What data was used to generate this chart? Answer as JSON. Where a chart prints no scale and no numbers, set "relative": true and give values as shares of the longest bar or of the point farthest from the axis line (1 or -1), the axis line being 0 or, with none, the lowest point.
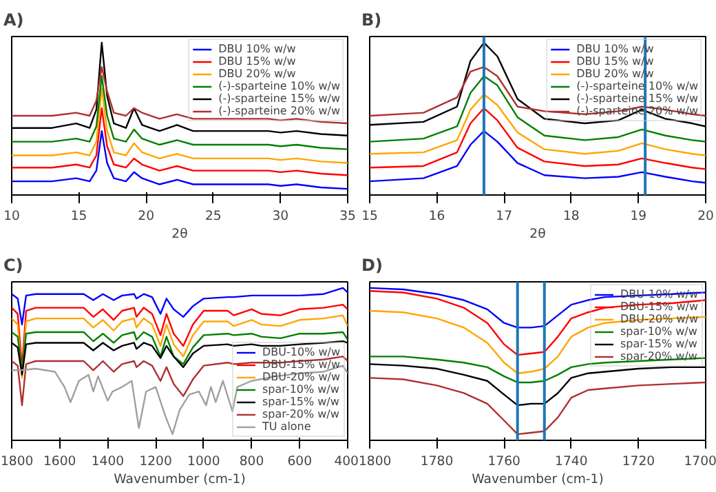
{
  "chart_data": [
    {
      "type": "line",
      "title": "A)",
      "xlabel": "2θ",
      "relative": true,
      "tick_labels": "x",
      "legend": "top right",
      "xlim": [
        10,
        35
      ],
      "xticks": [
        10,
        15,
        20,
        25,
        30,
        35
      ],
      "x": [
        10,
        13,
        14.8,
        15.8,
        16.3,
        16.7,
        17.1,
        17.6,
        18.5,
        19.1,
        19.7,
        21,
        22.3,
        23.5,
        26,
        29.1,
        30,
        31.2,
        33,
        35
      ],
      "series": [
        {
          "name": "DBU 10% w/w",
          "color": "#0000ff",
          "values": [
            0.09,
            0.09,
            0.11,
            0.09,
            0.16,
            0.42,
            0.21,
            0.11,
            0.09,
            0.15,
            0.11,
            0.07,
            0.1,
            0.07,
            0.07,
            0.07,
            0.06,
            0.07,
            0.05,
            0.04
          ]
        },
        {
          "name": "DBU 15% w/w",
          "color": "#ff0000",
          "values": [
            0.18,
            0.18,
            0.2,
            0.18,
            0.26,
            0.57,
            0.32,
            0.2,
            0.18,
            0.24,
            0.2,
            0.16,
            0.19,
            0.16,
            0.16,
            0.16,
            0.15,
            0.16,
            0.14,
            0.13
          ]
        },
        {
          "name": "DBU 20% w/w",
          "color": "#ffa500",
          "values": [
            0.26,
            0.26,
            0.28,
            0.26,
            0.35,
            0.7,
            0.42,
            0.28,
            0.26,
            0.34,
            0.28,
            0.24,
            0.27,
            0.24,
            0.24,
            0.24,
            0.23,
            0.24,
            0.22,
            0.21
          ]
        },
        {
          "name": "(-)-sparteine 10% w/w",
          "color": "#008000",
          "values": [
            0.35,
            0.35,
            0.37,
            0.35,
            0.45,
            0.78,
            0.52,
            0.37,
            0.35,
            0.43,
            0.37,
            0.33,
            0.36,
            0.33,
            0.33,
            0.33,
            0.32,
            0.33,
            0.31,
            0.3
          ]
        },
        {
          "name": "(-)-sparteine 15% w/w",
          "color": "#000000",
          "values": [
            0.44,
            0.44,
            0.47,
            0.44,
            0.56,
            1.0,
            0.65,
            0.47,
            0.44,
            0.57,
            0.46,
            0.42,
            0.46,
            0.42,
            0.42,
            0.42,
            0.41,
            0.42,
            0.4,
            0.39
          ]
        },
        {
          "name": "(-)-sparteine 20% w/w",
          "color": "#b03030",
          "values": [
            0.52,
            0.52,
            0.54,
            0.52,
            0.62,
            0.84,
            0.68,
            0.54,
            0.52,
            0.57,
            0.54,
            0.5,
            0.53,
            0.5,
            0.5,
            0.5,
            0.49,
            0.5,
            0.48,
            0.47
          ]
        }
      ]
    },
    {
      "type": "line",
      "title": "B)",
      "xlabel": "2θ",
      "relative": true,
      "tick_labels": "x",
      "legend": "top right",
      "xlim": [
        15,
        20
      ],
      "xticks": [
        15,
        16,
        17,
        18,
        19,
        20
      ],
      "ref_lines": [
        {
          "axis": "x",
          "value": 16.7,
          "color": "#1f77b4"
        },
        {
          "axis": "x",
          "value": 19.1,
          "color": "#1f77b4"
        }
      ],
      "x": [
        15,
        15.8,
        16.3,
        16.5,
        16.7,
        16.9,
        17.2,
        17.6,
        18.2,
        18.7,
        19.05,
        19.4,
        19.8,
        20
      ],
      "series": [
        {
          "name": "DBU 10% w/w",
          "color": "#0000ff",
          "values": [
            0.09,
            0.11,
            0.19,
            0.33,
            0.42,
            0.35,
            0.21,
            0.13,
            0.11,
            0.12,
            0.15,
            0.12,
            0.09,
            0.08
          ]
        },
        {
          "name": "DBU 15% w/w",
          "color": "#ff0000",
          "values": [
            0.18,
            0.19,
            0.28,
            0.47,
            0.57,
            0.49,
            0.31,
            0.22,
            0.19,
            0.2,
            0.24,
            0.21,
            0.18,
            0.17
          ]
        },
        {
          "name": "DBU 20% w/w",
          "color": "#ffa500",
          "values": [
            0.27,
            0.28,
            0.36,
            0.56,
            0.66,
            0.59,
            0.41,
            0.3,
            0.27,
            0.29,
            0.34,
            0.3,
            0.27,
            0.26
          ]
        },
        {
          "name": "(-)-sparteine 10% w/w",
          "color": "#008000",
          "values": [
            0.35,
            0.37,
            0.45,
            0.67,
            0.78,
            0.72,
            0.51,
            0.39,
            0.36,
            0.38,
            0.43,
            0.39,
            0.36,
            0.35
          ]
        },
        {
          "name": "(-)-sparteine 15% w/w",
          "color": "#000000",
          "values": [
            0.46,
            0.48,
            0.58,
            0.88,
            1.0,
            0.91,
            0.63,
            0.5,
            0.47,
            0.49,
            0.56,
            0.5,
            0.47,
            0.45
          ]
        },
        {
          "name": "(-)-sparteine 20% w/w",
          "color": "#b03030",
          "values": [
            0.52,
            0.54,
            0.64,
            0.81,
            0.84,
            0.78,
            0.58,
            0.55,
            0.53,
            0.55,
            0.58,
            0.56,
            0.53,
            0.52
          ]
        }
      ]
    },
    {
      "type": "line",
      "title": "C)",
      "xlabel": "Wavenumber (cm-1)",
      "relative": true,
      "tick_labels": "x",
      "legend": "bottom right",
      "xlim": [
        1800,
        400
      ],
      "xticks": [
        1800,
        1600,
        1400,
        1200,
        1000,
        800,
        600,
        400
      ],
      "x": [
        1800,
        1775,
        1757,
        1740,
        1700,
        1600,
        1500,
        1460,
        1420,
        1375,
        1340,
        1290,
        1280,
        1250,
        1215,
        1180,
        1155,
        1125,
        1085,
        1045,
        1000,
        900,
        875,
        800,
        760,
        680,
        600,
        500,
        420,
        400
      ],
      "series": [
        {
          "name": "DBU-10% w/w",
          "color": "#0000ff",
          "values": [
            0.96,
            0.93,
            0.76,
            0.95,
            0.96,
            0.96,
            0.96,
            0.92,
            0.96,
            0.92,
            0.95,
            0.96,
            0.93,
            0.96,
            0.94,
            0.83,
            0.93,
            0.86,
            0.81,
            0.88,
            0.93,
            0.94,
            0.94,
            0.95,
            0.95,
            0.95,
            0.95,
            0.96,
            1.0,
            0.97
          ]
        },
        {
          "name": "DBU-15% w/w",
          "color": "#ff0000",
          "values": [
            0.87,
            0.83,
            0.48,
            0.85,
            0.87,
            0.87,
            0.87,
            0.81,
            0.86,
            0.79,
            0.85,
            0.87,
            0.81,
            0.87,
            0.83,
            0.69,
            0.83,
            0.7,
            0.62,
            0.76,
            0.85,
            0.85,
            0.82,
            0.86,
            0.83,
            0.82,
            0.86,
            0.87,
            0.89,
            0.86
          ]
        },
        {
          "name": "DBU-20% w/w",
          "color": "#ffa500",
          "values": [
            0.8,
            0.76,
            0.41,
            0.78,
            0.8,
            0.8,
            0.8,
            0.74,
            0.79,
            0.72,
            0.78,
            0.8,
            0.74,
            0.8,
            0.76,
            0.62,
            0.76,
            0.63,
            0.55,
            0.69,
            0.78,
            0.78,
            0.75,
            0.79,
            0.76,
            0.75,
            0.79,
            0.8,
            0.82,
            0.75
          ]
        },
        {
          "name": "spar-10% w/w",
          "color": "#008000",
          "values": [
            0.71,
            0.68,
            0.45,
            0.7,
            0.71,
            0.71,
            0.71,
            0.65,
            0.7,
            0.64,
            0.69,
            0.71,
            0.66,
            0.71,
            0.68,
            0.55,
            0.68,
            0.55,
            0.5,
            0.61,
            0.69,
            0.7,
            0.69,
            0.7,
            0.68,
            0.67,
            0.7,
            0.7,
            0.71,
            0.66
          ]
        },
        {
          "name": "spar-15% w/w",
          "color": "#000000",
          "values": [
            0.64,
            0.61,
            0.43,
            0.63,
            0.64,
            0.64,
            0.64,
            0.59,
            0.64,
            0.59,
            0.62,
            0.64,
            0.6,
            0.64,
            0.62,
            0.54,
            0.62,
            0.55,
            0.48,
            0.57,
            0.62,
            0.63,
            0.62,
            0.63,
            0.62,
            0.62,
            0.63,
            0.64,
            0.65,
            0.64
          ]
        },
        {
          "name": "spar-20% w/w",
          "color": "#b03030",
          "values": [
            0.52,
            0.49,
            0.23,
            0.5,
            0.52,
            0.52,
            0.52,
            0.46,
            0.52,
            0.45,
            0.5,
            0.52,
            0.48,
            0.52,
            0.49,
            0.39,
            0.48,
            0.37,
            0.29,
            0.4,
            0.49,
            0.51,
            0.5,
            0.51,
            0.51,
            0.51,
            0.52,
            0.53,
            0.55,
            0.52
          ]
        },
        {
          "name": "TU alone",
          "color": "#a0a0a0",
          "x": [
            1800,
            1760,
            1700,
            1620,
            1580,
            1555,
            1520,
            1480,
            1460,
            1440,
            1400,
            1380,
            1340,
            1300,
            1270,
            1240,
            1200,
            1160,
            1130,
            1100,
            1060,
            1020,
            990,
            970,
            950,
            920,
            880,
            860,
            800,
            700,
            600,
            500,
            420,
            400
          ],
          "values": [
            0.46,
            0.46,
            0.47,
            0.45,
            0.35,
            0.25,
            0.39,
            0.43,
            0.32,
            0.42,
            0.26,
            0.32,
            0.35,
            0.39,
            0.08,
            0.32,
            0.35,
            0.16,
            0.04,
            0.2,
            0.3,
            0.32,
            0.23,
            0.35,
            0.25,
            0.39,
            0.19,
            0.35,
            0.39,
            0.42,
            0.44,
            0.45,
            0.49,
            0.44
          ]
        }
      ]
    },
    {
      "type": "line",
      "title": "D)",
      "xlabel": "Wavenumber (cm-1)",
      "relative": true,
      "tick_labels": "x",
      "legend": "top right",
      "xlim": [
        1800,
        1700
      ],
      "xticks": [
        1800,
        1780,
        1760,
        1740,
        1720,
        1700
      ],
      "ref_lines": [
        {
          "axis": "x",
          "value": 1756,
          "color": "#1f77b4"
        },
        {
          "axis": "x",
          "value": 1748,
          "color": "#1f77b4"
        }
      ],
      "x": [
        1800,
        1790,
        1780,
        1772,
        1765,
        1760,
        1756,
        1752,
        1748,
        1744,
        1740,
        1735,
        1730,
        1720,
        1710,
        1700
      ],
      "series": [
        {
          "name": "DBU-10% w/w",
          "color": "#0000ff",
          "values": [
            1.0,
            0.99,
            0.96,
            0.92,
            0.86,
            0.77,
            0.74,
            0.74,
            0.75,
            0.82,
            0.89,
            0.92,
            0.94,
            0.95,
            0.96,
            0.97
          ]
        },
        {
          "name": "DBU-15% w/w",
          "color": "#ff0000",
          "values": [
            0.98,
            0.97,
            0.93,
            0.87,
            0.77,
            0.63,
            0.56,
            0.57,
            0.58,
            0.68,
            0.8,
            0.84,
            0.87,
            0.89,
            0.9,
            0.92
          ]
        },
        {
          "name": "DBU-20% w/w",
          "color": "#ffa500",
          "values": [
            0.85,
            0.84,
            0.8,
            0.74,
            0.64,
            0.51,
            0.44,
            0.45,
            0.47,
            0.55,
            0.68,
            0.74,
            0.77,
            0.79,
            0.8,
            0.81
          ]
        },
        {
          "name": "spar-10% w/w",
          "color": "#008000",
          "values": [
            0.55,
            0.55,
            0.53,
            0.51,
            0.48,
            0.42,
            0.38,
            0.38,
            0.39,
            0.43,
            0.48,
            0.5,
            0.51,
            0.52,
            0.53,
            0.54
          ]
        },
        {
          "name": "spar-15% w/w",
          "color": "#000000",
          "values": [
            0.5,
            0.49,
            0.47,
            0.43,
            0.39,
            0.3,
            0.23,
            0.24,
            0.24,
            0.31,
            0.41,
            0.44,
            0.45,
            0.47,
            0.48,
            0.48
          ]
        },
        {
          "name": "spar-20% w/w",
          "color": "#b03030",
          "values": [
            0.41,
            0.4,
            0.36,
            0.31,
            0.24,
            0.13,
            0.04,
            0.05,
            0.06,
            0.15,
            0.28,
            0.33,
            0.34,
            0.36,
            0.37,
            0.38
          ]
        }
      ]
    }
  ]
}
